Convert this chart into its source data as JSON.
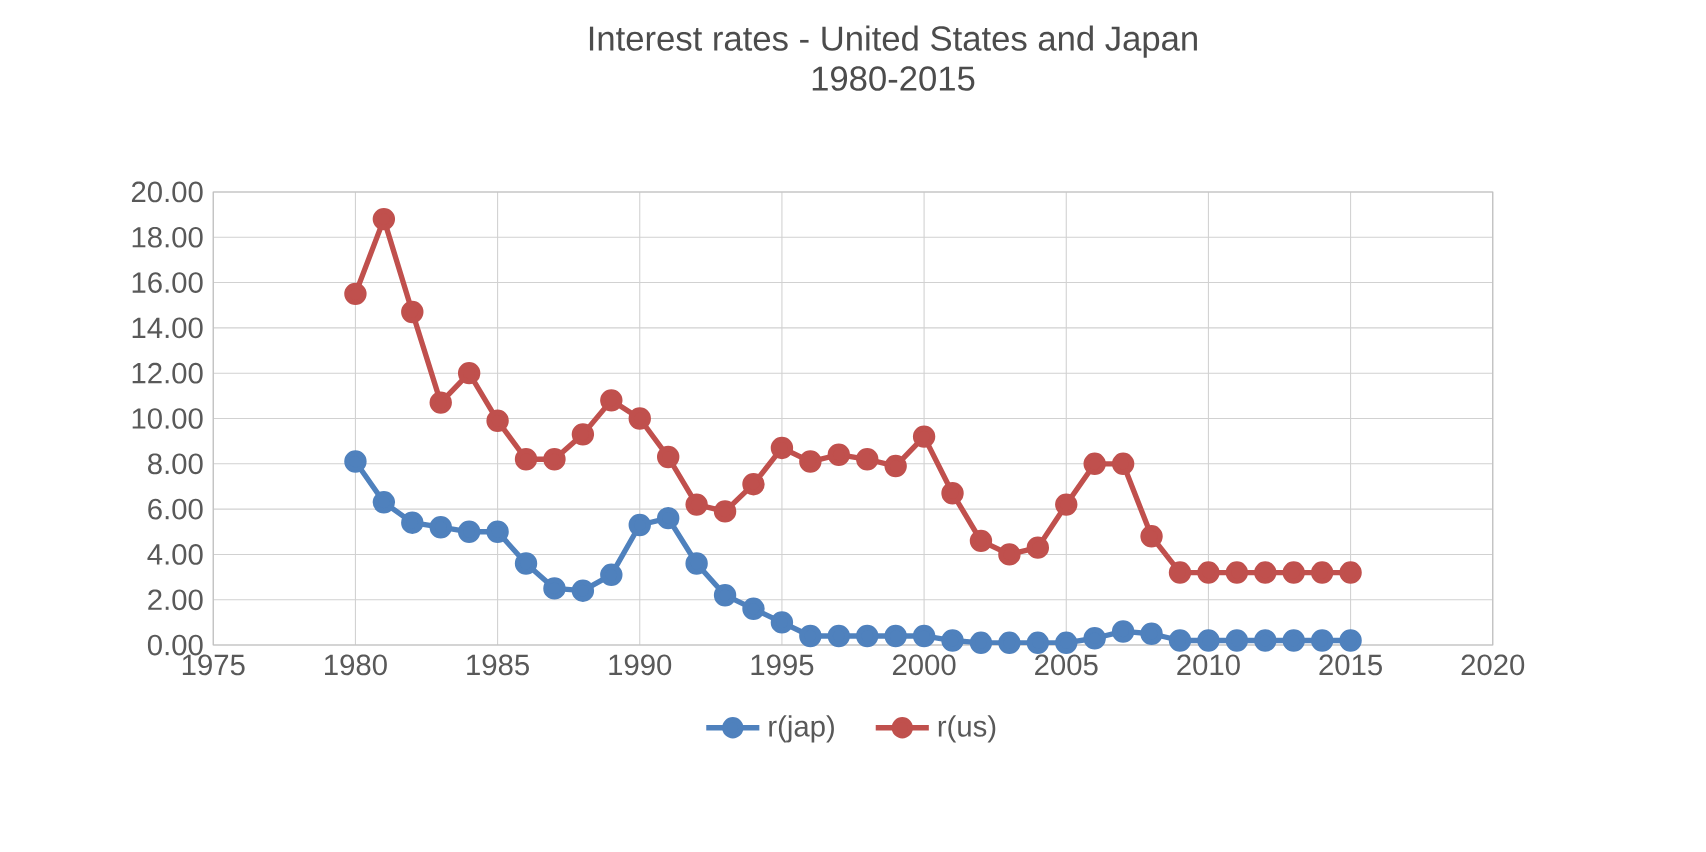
{
  "chart_data": {
    "type": "line",
    "title": "Interest rates - United States and Japan",
    "subtitle": "1980-2015",
    "x": [
      1980,
      1981,
      1982,
      1983,
      1984,
      1985,
      1986,
      1987,
      1988,
      1989,
      1990,
      1991,
      1992,
      1993,
      1994,
      1995,
      1996,
      1997,
      1998,
      1999,
      2000,
      2001,
      2002,
      2003,
      2004,
      2005,
      2006,
      2007,
      2008,
      2009,
      2010,
      2011,
      2012,
      2013,
      2014,
      2015
    ],
    "series": [
      {
        "name": "r(jap)",
        "color": "#4f81bd",
        "values": [
          8.1,
          6.3,
          5.4,
          5.2,
          5.0,
          5.0,
          3.6,
          2.5,
          2.4,
          3.1,
          5.3,
          5.6,
          3.6,
          2.2,
          1.6,
          1.0,
          0.4,
          0.4,
          0.4,
          0.4,
          0.4,
          0.2,
          0.1,
          0.1,
          0.1,
          0.1,
          0.3,
          0.6,
          0.5,
          0.2,
          0.2,
          0.2,
          0.2,
          0.2,
          0.2,
          0.2
        ]
      },
      {
        "name": "r(us)",
        "color": "#c0504d",
        "values": [
          15.5,
          18.8,
          14.7,
          10.7,
          12.0,
          9.9,
          8.2,
          8.2,
          9.3,
          10.8,
          10.0,
          8.3,
          6.2,
          5.9,
          7.1,
          8.7,
          8.1,
          8.4,
          8.2,
          7.9,
          9.2,
          6.7,
          4.6,
          4.0,
          4.3,
          6.2,
          8.0,
          8.0,
          4.8,
          3.2,
          3.2,
          3.2,
          3.2,
          3.2,
          3.2,
          3.2
        ]
      }
    ],
    "xlim": [
      1975,
      2020
    ],
    "xticks": [
      1975,
      1980,
      1985,
      1990,
      1995,
      2000,
      2005,
      2010,
      2015,
      2020
    ],
    "ylim": [
      0,
      20
    ],
    "yticks": [
      {
        "value": 0,
        "label": "0.00"
      },
      {
        "value": 2,
        "label": "2.00"
      },
      {
        "value": 4,
        "label": "4.00"
      },
      {
        "value": 6,
        "label": "6.00"
      },
      {
        "value": 8,
        "label": "8.00"
      },
      {
        "value": 10,
        "label": "10.00"
      },
      {
        "value": 12,
        "label": "12.00"
      },
      {
        "value": 14,
        "label": "14.00"
      },
      {
        "value": 16,
        "label": "16.00"
      },
      {
        "value": 18,
        "label": "18.00"
      },
      {
        "value": 20,
        "label": "20.00"
      }
    ],
    "grid": true,
    "legend": "bottom",
    "marker": "circle",
    "line_style": "solid"
  }
}
